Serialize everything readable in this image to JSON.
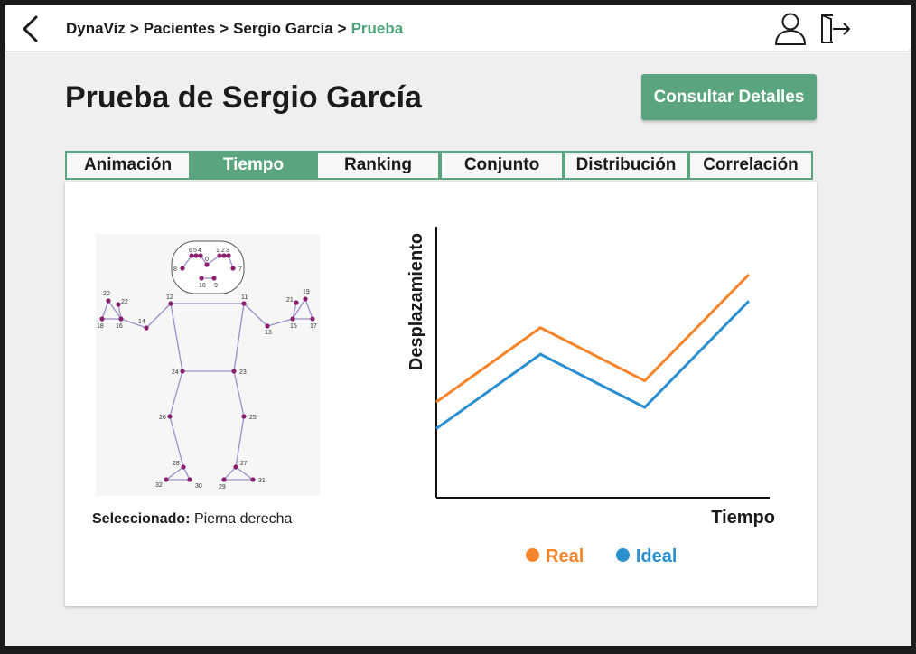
{
  "breadcrumb": {
    "items": [
      "DynaViz",
      "Pacientes",
      "Sergio García"
    ],
    "current": "Prueba",
    "separator": ">"
  },
  "header_icons": {
    "back": "chevron-left-icon",
    "user": "user-icon",
    "logout": "logout-icon"
  },
  "page_title": "Prueba de Sergio García",
  "details_button": "Consultar Detalles",
  "tabs": [
    {
      "label": "Animación",
      "active": false
    },
    {
      "label": "Tiempo",
      "active": true
    },
    {
      "label": "Ranking",
      "active": false
    },
    {
      "label": "Conjunto",
      "active": false
    },
    {
      "label": "Distribución",
      "active": false
    },
    {
      "label": "Correlación",
      "active": false
    }
  ],
  "selection": {
    "label": "Seleccionado:",
    "value": "Pierna derecha"
  },
  "skeleton_labels": [
    "0",
    "1",
    "2",
    "3",
    "4",
    "5",
    "6",
    "7",
    "8",
    "9",
    "10",
    "11",
    "12",
    "13",
    "14",
    "15",
    "16",
    "17",
    "18",
    "19",
    "20",
    "21",
    "22",
    "23",
    "24",
    "25",
    "26",
    "27",
    "28",
    "29",
    "30",
    "31",
    "32"
  ],
  "colors": {
    "accent": "#5ba57e",
    "real": "#f5842a",
    "ideal": "#2b8fd0",
    "joint": "#8a1f6e"
  },
  "chart_data": {
    "type": "line",
    "xlabel": "Tiempo",
    "ylabel": "Desplazamiento",
    "grid": false,
    "legend_position": "bottom",
    "x": [
      0,
      1,
      2,
      3
    ],
    "series": [
      {
        "name": "Real",
        "values": [
          7.5,
          14.5,
          9.5,
          19.5
        ]
      },
      {
        "name": "Ideal",
        "values": [
          5,
          12,
          7,
          17
        ]
      }
    ],
    "xlim": [
      0,
      3.2
    ],
    "ylim": [
      -1.5,
      24
    ]
  }
}
